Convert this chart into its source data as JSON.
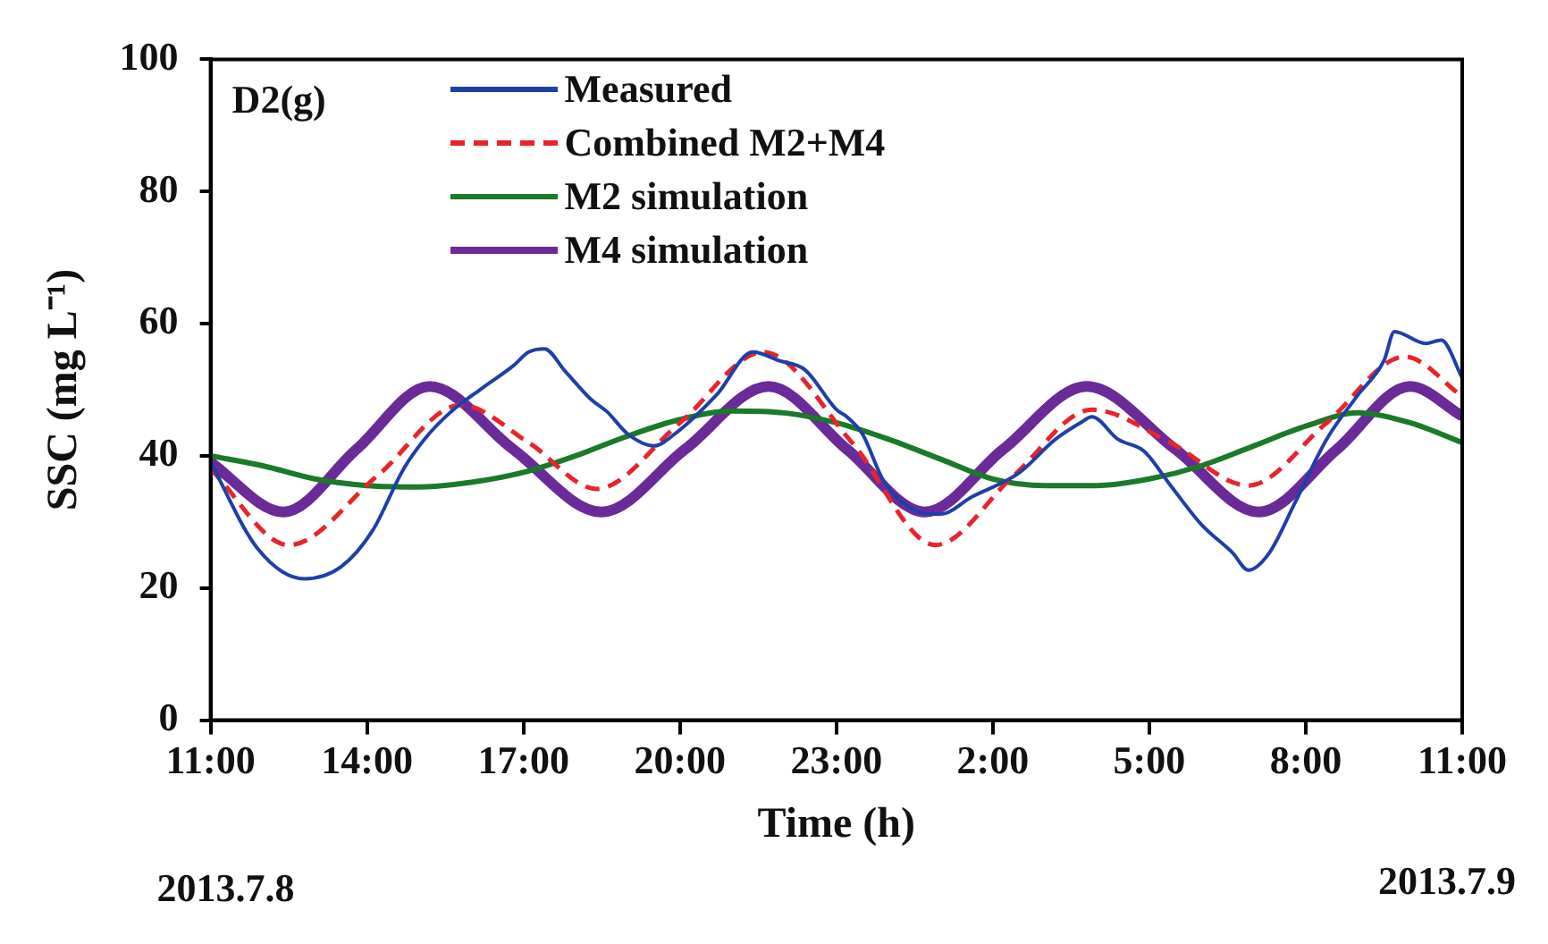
{
  "chart_data": {
    "type": "line",
    "xlabel": "Time (h)",
    "ylabel": "SSC (mg L⁻¹)",
    "annotations": [
      "D2(g)",
      "2013.7.8",
      "2013.7.9"
    ],
    "xlim": [
      "2013-07-08T11:00",
      "2013-07-09T11:00"
    ],
    "xticks": [
      {
        "value": "2013-07-08T11:00",
        "label": "11:00"
      },
      {
        "value": "2013-07-08T14:00",
        "label": "14:00"
      },
      {
        "value": "2013-07-08T17:00",
        "label": "17:00"
      },
      {
        "value": "2013-07-08T20:00",
        "label": "20:00"
      },
      {
        "value": "2013-07-08T23:00",
        "label": "23:00"
      },
      {
        "value": "2013-07-09T02:00",
        "label": "2:00"
      },
      {
        "value": "2013-07-09T05:00",
        "label": "5:00"
      },
      {
        "value": "2013-07-09T08:00",
        "label": "8:00"
      },
      {
        "value": "2013-07-09T11:00",
        "label": "11:00"
      }
    ],
    "ylim": [
      0,
      100
    ],
    "yticks": [
      0,
      20,
      40,
      60,
      80,
      100
    ],
    "grid": false,
    "legend": "top left",
    "series": [
      {
        "name": "Measured",
        "color": "#1f3fa8",
        "line_style": "solid",
        "x": [
          "2013-07-08T11:00",
          "2013-07-08T11:54",
          "2013-07-08T12:48",
          "2013-07-08T13:30",
          "2013-07-08T14:06",
          "2013-07-08T14:42",
          "2013-07-08T15:06",
          "2013-07-08T15:36",
          "2013-07-08T16:12",
          "2013-07-08T16:48",
          "2013-07-08T17:06",
          "2013-07-08T17:24",
          "2013-07-08T17:48",
          "2013-07-08T18:18",
          "2013-07-08T18:36",
          "2013-07-08T19:00",
          "2013-07-08T19:30",
          "2013-07-08T19:54",
          "2013-07-08T20:42",
          "2013-07-08T21:24",
          "2013-07-08T21:54",
          "2013-07-08T22:24",
          "2013-07-08T23:00",
          "2013-07-08T23:12",
          "2013-07-08T23:30",
          "2013-07-08T23:54",
          "2013-07-09T00:24",
          "2013-07-09T01:00",
          "2013-07-09T01:36",
          "2013-07-09T02:30",
          "2013-07-09T03:12",
          "2013-07-09T03:42",
          "2013-07-09T03:54",
          "2013-07-09T04:24",
          "2013-07-09T04:54",
          "2013-07-09T05:24",
          "2013-07-09T06:00",
          "2013-07-09T06:36",
          "2013-07-09T06:54",
          "2013-07-09T07:18",
          "2013-07-09T07:48",
          "2013-07-09T08:24",
          "2013-07-09T09:00",
          "2013-07-09T09:30",
          "2013-07-09T09:42",
          "2013-07-09T10:18",
          "2013-07-09T10:36",
          "2013-07-09T11:00"
        ],
        "values": [
          39,
          26,
          21.4,
          23.2,
          28.6,
          38,
          42.5,
          46.6,
          50.2,
          53.6,
          55.7,
          56.2,
          52.8,
          48.5,
          46.7,
          43.3,
          41.5,
          43.3,
          49.2,
          55.7,
          54.4,
          53,
          47,
          45.9,
          43.3,
          36.3,
          32.2,
          31.2,
          33.8,
          37.4,
          42.5,
          45.1,
          45.9,
          42.5,
          40.7,
          35.6,
          29.6,
          25.3,
          22.7,
          25.3,
          33,
          42.5,
          49.2,
          54.4,
          58.8,
          57,
          57.5,
          51.8
        ]
      },
      {
        "name": "Combined M2+M4",
        "color": "#e8242a",
        "line_style": "dashed",
        "x": [
          "2013-07-08T11:00",
          "2013-07-08T12:30",
          "2013-07-08T14:12",
          "2013-07-08T15:48",
          "2013-07-08T17:06",
          "2013-07-08T18:24",
          "2013-07-08T20:00",
          "2013-07-08T21:36",
          "2013-07-08T23:18",
          "2013-07-09T00:54",
          "2013-07-09T02:24",
          "2013-07-09T03:54",
          "2013-07-09T05:24",
          "2013-07-09T06:54",
          "2013-07-09T08:24",
          "2013-07-09T09:54",
          "2013-07-09T11:00"
        ],
        "values": [
          38,
          26.5,
          37,
          47.7,
          42,
          35,
          45,
          55.7,
          42,
          26.5,
          37,
          47,
          42,
          35.5,
          45,
          55,
          49
        ]
      },
      {
        "name": "M2 simulation",
        "color": "#1a7a2a",
        "line_style": "solid",
        "x": [
          "2013-07-08T11:00",
          "2013-07-08T12:00",
          "2013-07-08T13:00",
          "2013-07-08T14:00",
          "2013-07-08T15:00",
          "2013-07-08T16:00",
          "2013-07-08T17:00",
          "2013-07-08T18:00",
          "2013-07-08T19:00",
          "2013-07-08T20:00",
          "2013-07-08T21:00",
          "2013-07-08T22:00",
          "2013-07-08T23:00",
          "2013-07-09T00:00",
          "2013-07-09T01:00",
          "2013-07-09T02:00",
          "2013-07-09T03:00",
          "2013-07-09T04:00",
          "2013-07-09T05:00",
          "2013-07-09T06:00",
          "2013-07-09T07:00",
          "2013-07-09T08:00",
          "2013-07-09T09:00",
          "2013-07-09T10:00",
          "2013-07-09T11:00"
        ],
        "values": [
          40,
          38.5,
          36.5,
          35.5,
          35.3,
          36,
          37.5,
          40,
          43,
          45.5,
          46.8,
          46.5,
          45,
          42.5,
          39.5,
          36.5,
          35.5,
          35.5,
          36.5,
          38.5,
          41.5,
          44.5,
          46.5,
          45,
          42
        ]
      },
      {
        "name": "M4 simulation",
        "color": "#6a2a9a",
        "line_style": "solid",
        "x": [
          "2013-07-08T11:00",
          "2013-07-08T12:24",
          "2013-07-08T13:48",
          "2013-07-08T15:12",
          "2013-07-08T16:48",
          "2013-07-08T18:30",
          "2013-07-08T20:06",
          "2013-07-08T21:42",
          "2013-07-08T23:12",
          "2013-07-09T00:42",
          "2013-07-09T02:12",
          "2013-07-09T03:48",
          "2013-07-09T05:30",
          "2013-07-09T07:06",
          "2013-07-09T08:36",
          "2013-07-09T10:00",
          "2013-07-09T11:00"
        ],
        "values": [
          39,
          31.5,
          41,
          50.5,
          41,
          31.5,
          41,
          50.5,
          41,
          31.5,
          41,
          50.5,
          41,
          31.5,
          41,
          50.5,
          46
        ]
      }
    ]
  }
}
